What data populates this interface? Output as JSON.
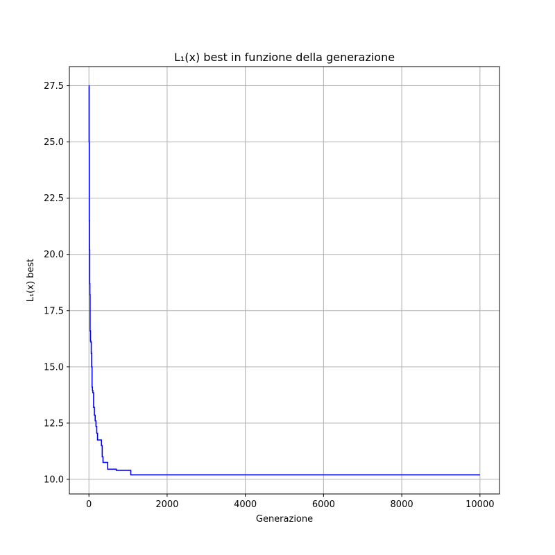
{
  "chart_data": {
    "type": "line",
    "title": "L₁(x) best in funzione della generazione",
    "xlabel": "Generazione",
    "ylabel": "L₁(x) best",
    "xlim": [
      -500,
      10500
    ],
    "ylim": [
      9.35,
      28.35
    ],
    "x_ticks": [
      0,
      2000,
      4000,
      6000,
      8000,
      10000
    ],
    "y_ticks": [
      10.0,
      12.5,
      15.0,
      17.5,
      20.0,
      22.5,
      25.0,
      27.5
    ],
    "x_tick_labels": [
      "0",
      "2000",
      "4000",
      "6000",
      "8000",
      "10000"
    ],
    "y_tick_labels": [
      "10.0",
      "12.5",
      "15.0",
      "17.5",
      "20.0",
      "22.5",
      "25.0",
      "27.5"
    ],
    "grid": true,
    "series": [
      {
        "color": "#0000ff",
        "step": true,
        "x": [
          0,
          5,
          10,
          15,
          20,
          25,
          30,
          40,
          50,
          60,
          70,
          80,
          90,
          100,
          120,
          140,
          160,
          180,
          200,
          220,
          260,
          320,
          340,
          360,
          380,
          450,
          480,
          700,
          1070,
          10000
        ],
        "y": [
          27.5,
          25.0,
          21.5,
          20.2,
          18.7,
          18.2,
          16.6,
          16.15,
          16.1,
          15.6,
          15.0,
          14.1,
          13.95,
          13.85,
          13.2,
          12.85,
          12.6,
          12.35,
          12.05,
          11.75,
          11.75,
          11.5,
          11.0,
          10.75,
          10.75,
          10.75,
          10.45,
          10.4,
          10.2,
          10.2
        ]
      }
    ]
  }
}
